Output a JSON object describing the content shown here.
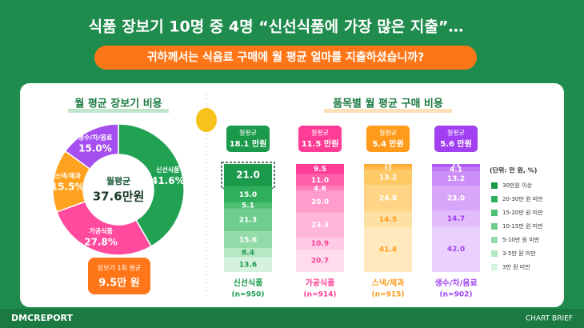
{
  "header": {
    "title": "식품 장보기 10명 중 4명 “신선식품에 가장 많은 지출”…",
    "question": "귀하께서는 식음료 구매에 월 평균 얼마를 지출하셨습니까?"
  },
  "donut": {
    "title": "월 평균 장보기 비용",
    "center_label": "월평균",
    "center_value": "37.6만원",
    "segments": [
      {
        "name": "신선식품",
        "value": 41.6,
        "label": "41.6%",
        "color": "#21a152"
      },
      {
        "name": "가공식품",
        "value": 27.8,
        "label": "27.8%",
        "color": "#ff4a9e"
      },
      {
        "name": "스낵/제과",
        "value": 15.5,
        "label": "15.5%",
        "color": "#ffa21f"
      },
      {
        "name": "생수/차/음료",
        "value": 15.0,
        "label": "15.0%",
        "color": "#a64ff0"
      }
    ],
    "callout_label": "장보기 1회 평균",
    "callout_value": "9.5만 원"
  },
  "bars": {
    "title": "품목별 월 평균 구매 비용",
    "unit": "(단위: 만 원, %)",
    "brackets": [
      "30만원 이상",
      "20-30만 원 미만",
      "15-20만 원 미만",
      "10-15만 원 미만",
      "5-10만 원 미만",
      "3-5만 원 미만",
      "3만 원 미만"
    ],
    "legend_colors": [
      "#1a9a4a",
      "#2fae5c",
      "#4cbf73",
      "#6fcd8e",
      "#93dba9",
      "#b5e7c4",
      "#d4f2dd"
    ],
    "columns": [
      {
        "name": "신선식품",
        "n": "(n=950)",
        "avg_label": "월평균",
        "avg_value": "18.1 만원",
        "color": "#1a9a4a",
        "values": [
          21.0,
          15.0,
          5.1,
          21.3,
          15.6,
          8.4,
          13.6
        ],
        "value_labels": [
          "21.0",
          "15.0",
          "5.1",
          "21.3",
          "15.6",
          "8.4",
          "13.6"
        ],
        "colors": [
          "#1a9a4a",
          "#2fae5c",
          "#4cbf73",
          "#6fcd8e",
          "#93dba9",
          "#b5e7c4",
          "#d4f2dd"
        ]
      },
      {
        "name": "가공식품",
        "n": "(n=914)",
        "avg_label": "월평균",
        "avg_value": "11.5 만원",
        "color": "#ff3d96",
        "values": [
          9.5,
          11.0,
          4.6,
          20.0,
          23.3,
          10.9,
          20.7
        ],
        "value_labels": [
          "9.5",
          "11.0",
          "4.6",
          "20.0",
          "23.3",
          "10.9",
          "20.7"
        ],
        "colors": [
          "#ff3d96",
          "#ff5ea8",
          "#ff7fba",
          "#ff9ccb",
          "#ffb6d9",
          "#ffcbe4",
          "#ffdcec"
        ]
      },
      {
        "name": "스낵/제과",
        "n": "(n=915)",
        "avg_label": "월평균",
        "avg_value": "5.4 만원",
        "color": "#ff9a1a",
        "values": [
          0.6,
          2.0,
          3.5,
          13.2,
          24.8,
          14.5,
          41.4
        ],
        "value_labels": [
          "0.6",
          "2.0",
          "3.5",
          "13.2",
          "24.8",
          "14.5",
          "41.4"
        ],
        "colors": [
          "#ff9a1a",
          "#ffab33",
          "#ffbb4d",
          "#ffc966",
          "#ffd585",
          "#ffe0a3",
          "#ffe9bd"
        ]
      },
      {
        "name": "생수/차/음료",
        "n": "(n=902)",
        "avg_label": "월평균",
        "avg_value": "5.6 만원",
        "color": "#a040f0",
        "values": [
          0.6,
          2.4,
          4.1,
          13.2,
          23.0,
          14.7,
          42.0
        ],
        "value_labels": [
          "0.6",
          "2.4",
          "4.1",
          "13.2",
          "23.0",
          "14.7",
          "42.0"
        ],
        "colors": [
          "#a040f0",
          "#b05cf3",
          "#bf77f5",
          "#cc8ff7",
          "#d8a6f9",
          "#e2bbfa",
          "#ebcffc"
        ]
      }
    ]
  },
  "footer": {
    "brand": "DMCREPORT",
    "tag": "CHART BRIEF"
  }
}
